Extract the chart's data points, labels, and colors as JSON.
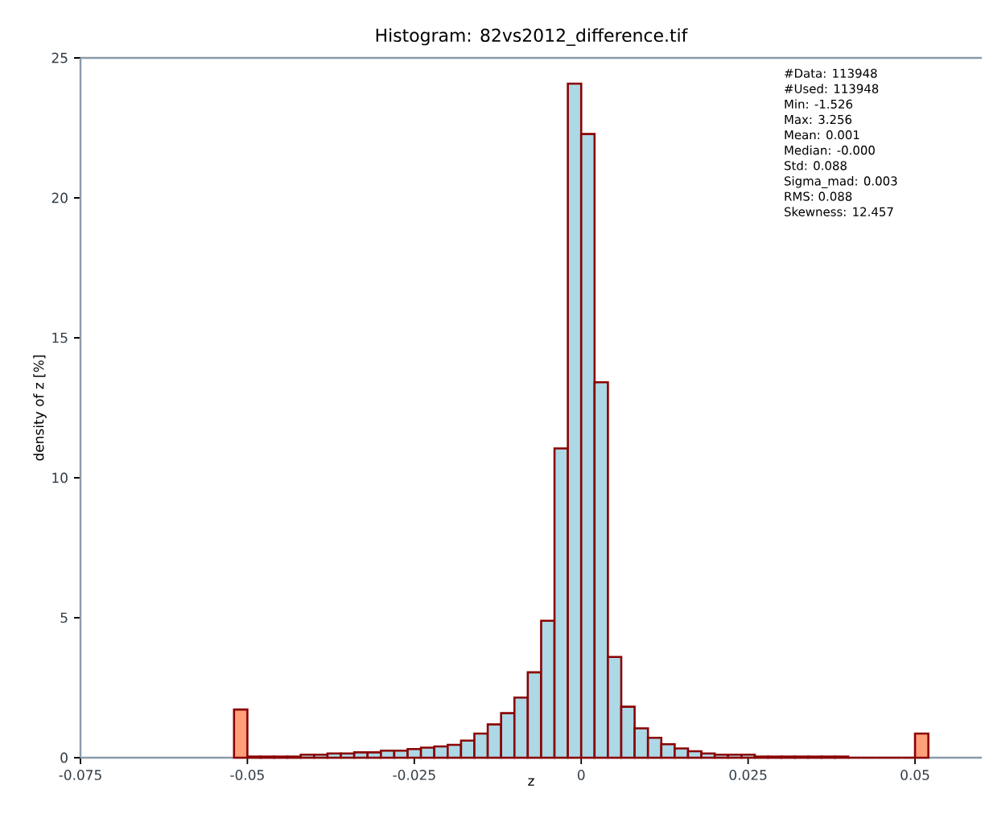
{
  "chart_data": {
    "type": "histogram",
    "title": "Histogram: 82vs2012_difference.tif",
    "xlabel": "z",
    "ylabel": "density of z [%]",
    "bins": [
      -0.052,
      -0.05,
      -0.048,
      -0.046,
      -0.044,
      -0.042,
      -0.04,
      -0.038,
      -0.036,
      -0.034,
      -0.032,
      -0.03,
      -0.028,
      -0.026,
      -0.024,
      -0.022,
      -0.02,
      -0.018,
      -0.016,
      -0.014,
      -0.012,
      -0.01,
      -0.008,
      -0.006,
      -0.004,
      -0.002,
      0,
      0.002,
      0.004,
      0.006,
      0.008,
      0.01,
      0.012,
      0.014,
      0.016,
      0.018,
      0.02,
      0.022,
      0.024,
      0.026,
      0.028,
      0.03,
      0.032,
      0.034,
      0.036,
      0.038,
      0.04,
      0.042,
      0.044,
      0.046,
      0.048,
      0.05,
      0.052
    ],
    "values": [
      1.72,
      0.04,
      0.04,
      0.04,
      0.04,
      0.11,
      0.11,
      0.15,
      0.15,
      0.19,
      0.19,
      0.25,
      0.25,
      0.31,
      0.36,
      0.4,
      0.46,
      0.61,
      0.86,
      1.19,
      1.59,
      2.15,
      3.05,
      4.89,
      11.05,
      24.08,
      22.28,
      13.41,
      3.6,
      1.82,
      1.05,
      0.71,
      0.48,
      0.33,
      0.23,
      0.15,
      0.11,
      0.11,
      0.11,
      0.04,
      0.04,
      0.04,
      0.04,
      0.04,
      0.04,
      0.04,
      0,
      0,
      0,
      0,
      0,
      0.86
    ],
    "colors": [
      "#ffa07a",
      "#add8e6",
      "#add8e6",
      "#add8e6",
      "#add8e6",
      "#add8e6",
      "#add8e6",
      "#add8e6",
      "#add8e6",
      "#add8e6",
      "#add8e6",
      "#add8e6",
      "#add8e6",
      "#add8e6",
      "#add8e6",
      "#add8e6",
      "#add8e6",
      "#add8e6",
      "#add8e6",
      "#add8e6",
      "#add8e6",
      "#add8e6",
      "#add8e6",
      "#add8e6",
      "#add8e6",
      "#add8e6",
      "#add8e6",
      "#add8e6",
      "#add8e6",
      "#add8e6",
      "#add8e6",
      "#add8e6",
      "#add8e6",
      "#add8e6",
      "#add8e6",
      "#add8e6",
      "#add8e6",
      "#add8e6",
      "#add8e6",
      "#add8e6",
      "#add8e6",
      "#add8e6",
      "#add8e6",
      "#add8e6",
      "#add8e6",
      "#add8e6",
      "#add8e6",
      "#add8e6",
      "#add8e6",
      "#add8e6",
      "#add8e6",
      "#ffa07a"
    ],
    "xlim": [
      -0.075,
      0.06
    ],
    "ylim": [
      0,
      25
    ],
    "xticks": [
      -0.075,
      -0.05,
      -0.025,
      0,
      0.025,
      0.05
    ],
    "yticks": [
      0,
      5,
      10,
      15,
      20,
      25
    ],
    "annotations": [
      "#Data: 113948",
      "#Used: 113948",
      "Min: -1.526",
      "Max: 3.256",
      "Mean: 0.001",
      "Median: -0.000",
      "Std: 0.088",
      "Sigma_mad: 0.003",
      "RMS: 0.088",
      "Skewness: 12.457"
    ]
  }
}
